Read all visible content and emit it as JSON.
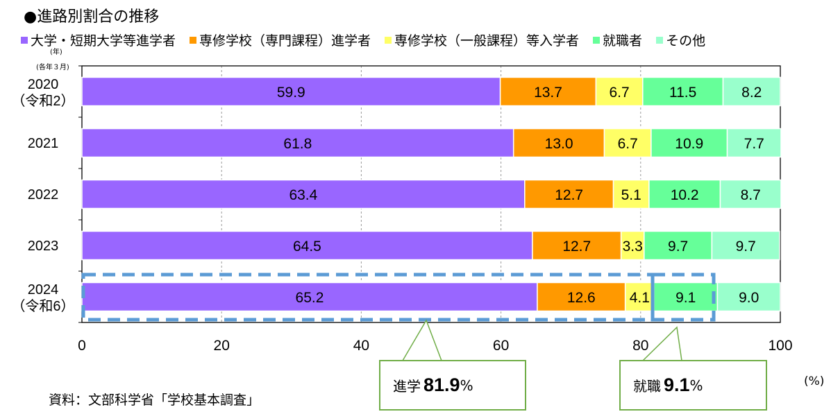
{
  "title": "●進路別割合の推移",
  "note_year": "(年)",
  "note_month": "(各年３月)",
  "source": "資料：文部科学省「学校基本調査」",
  "unit": "(%)",
  "callouts": [
    {
      "label": "進学",
      "value": "81.9",
      "suffix": "%"
    },
    {
      "label": "就職",
      "value": "9.1",
      "suffix": "%"
    }
  ],
  "chart_data": {
    "type": "bar",
    "orientation": "horizontal",
    "stacked": true,
    "categories": [
      "2020\n（令和2）",
      "2021",
      "2022",
      "2023",
      "2024\n（令和6）"
    ],
    "series": [
      {
        "name": "大学・短期大学等進学者",
        "color": "#9966FF",
        "values": [
          59.9,
          61.8,
          63.4,
          64.5,
          65.2
        ]
      },
      {
        "name": "専修学校（専門課程）進学者",
        "color": "#FF9900",
        "values": [
          13.7,
          13.0,
          12.7,
          12.7,
          12.6
        ]
      },
      {
        "name": "専修学校（一般課程）等入学者",
        "color": "#FFFF66",
        "values": [
          6.7,
          6.7,
          5.1,
          3.3,
          4.1
        ]
      },
      {
        "name": "就職者",
        "color": "#66FF99",
        "values": [
          11.5,
          10.9,
          10.2,
          9.7,
          9.1
        ]
      },
      {
        "name": "その他",
        "color": "#99FFCC",
        "values": [
          8.2,
          7.7,
          8.7,
          9.7,
          9.0
        ]
      }
    ],
    "xlim": [
      0,
      100
    ],
    "xticks": [
      0,
      20,
      40,
      60,
      80,
      100
    ],
    "grid": "vertical dashed",
    "legend": "top"
  }
}
